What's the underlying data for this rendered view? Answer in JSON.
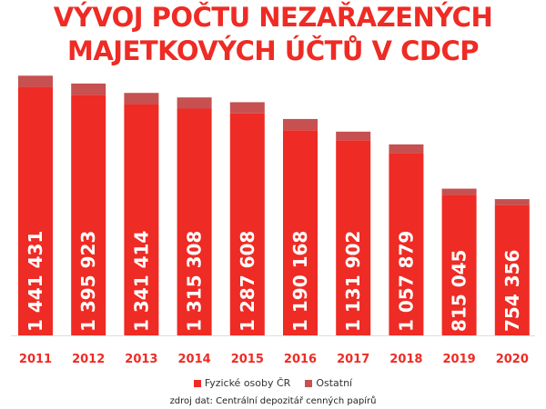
{
  "title_lines": [
    "VÝVOJ POČTU NEZAŘAZENÝCH",
    "MAJETKOVÝCH ÚČTŮ V CDCP"
  ],
  "source": "zdroj dat: Centrální depozitář cenných papírů",
  "colors": {
    "title": "#ee2b24",
    "fyzicke": "#ee2b24",
    "ostatni": "#c75050",
    "bar_label": "#ffffff",
    "year_label": "#ee2b24"
  },
  "chart_data": {
    "type": "bar",
    "stacked": true,
    "title": "VÝVOJ POČTU NEZAŘAZENÝCH MAJETKOVÝCH ÚČTŮ V CDCP",
    "categories": [
      "2011",
      "2012",
      "2013",
      "2014",
      "2015",
      "2016",
      "2017",
      "2018",
      "2019",
      "2020"
    ],
    "series": [
      {
        "name": "Fyzické osoby ČR",
        "values": [
          1441431,
          1395923,
          1341414,
          1315308,
          1287608,
          1190168,
          1131902,
          1057879,
          815045,
          754356
        ],
        "labels": [
          "1 441 431",
          "1 395 923",
          "1 341 414",
          "1 315 308",
          "1 287 608",
          "1 190 168",
          "1 131 902",
          "1 057 879",
          "815 045",
          "754 356"
        ]
      },
      {
        "name": "Ostatní",
        "values": [
          65000,
          65000,
          65000,
          65000,
          65000,
          65000,
          50000,
          50000,
          36000,
          36000
        ]
      }
    ],
    "ylim": [
      0,
      1550000
    ],
    "grid": false,
    "legend": "bottom"
  }
}
